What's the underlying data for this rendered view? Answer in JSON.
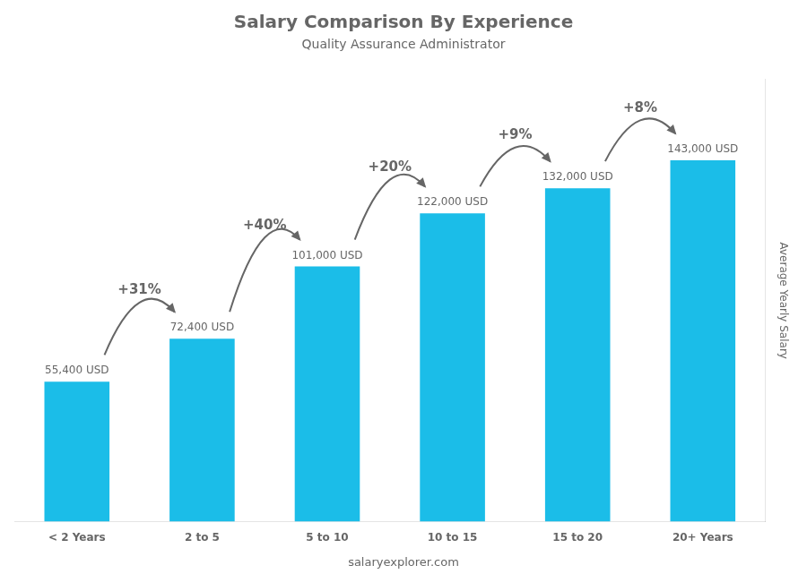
{
  "chart_data": {
    "type": "bar",
    "title": "Salary Comparison By Experience",
    "subtitle": "Quality Assurance Administrator",
    "ylabel": "Average Yearly Salary",
    "categories": [
      "< 2 Years",
      "2 to 5",
      "5 to 10",
      "10 to 15",
      "15 to 20",
      "20+ Years"
    ],
    "values": [
      55400,
      72400,
      101000,
      122000,
      132000,
      143000
    ],
    "value_labels": [
      "55,400 USD",
      "72,400 USD",
      "101,000 USD",
      "122,000 USD",
      "132,000 USD",
      "143,000 USD"
    ],
    "data_labels": true,
    "annotations": [
      "+31%",
      "+40%",
      "+20%",
      "+9%",
      "+8%"
    ],
    "footer": "salaryexplorer.com",
    "color": "#1BBDE8",
    "ylim": [
      0,
      175000
    ],
    "tick_labels": "x",
    "grid": false
  }
}
